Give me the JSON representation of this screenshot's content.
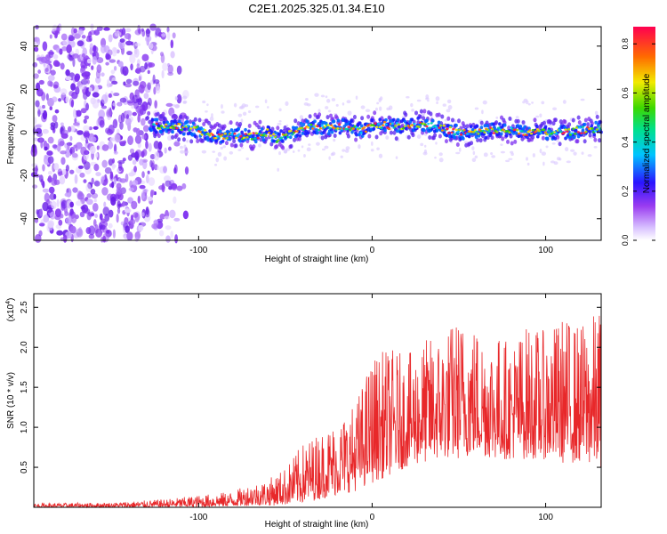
{
  "chart_data": [
    {
      "type": "heatmap",
      "title": "C2E1.2025.325.01.34.E10",
      "xlabel": "Height of straight line (km)",
      "ylabel": "Frequency (Hz)",
      "xlim": [
        -195,
        132
      ],
      "ylim": [
        -50,
        49
      ],
      "xticks": [
        -100,
        0,
        100
      ],
      "yticks": [
        -40,
        -20,
        0,
        20,
        40
      ],
      "noise_region_x": [
        -195,
        -110
      ],
      "signal_band": {
        "x": [
          -130,
          -115,
          -100,
          -90,
          -80,
          -70,
          -60,
          -55,
          -45,
          -35,
          -25,
          -15,
          -5,
          0,
          10,
          20,
          30,
          40,
          50,
          60,
          70,
          80,
          90,
          100,
          110,
          120,
          132
        ],
        "center_hz": [
          3,
          3,
          1,
          -2,
          -1,
          -2,
          0,
          -3,
          0,
          3,
          2,
          3,
          1,
          4,
          3,
          3,
          4,
          2,
          0,
          0,
          1,
          1,
          0,
          0,
          0,
          1,
          2
        ],
        "halfwidth_hz": 5
      },
      "colorbar": {
        "label": "Normalized spectral amplitude",
        "ticks": [
          "0.0",
          "0.2",
          "0.4",
          "0.6",
          "0.8"
        ],
        "range": [
          0,
          0.87
        ]
      }
    },
    {
      "type": "line",
      "xlabel": "Height of straight line (km)",
      "ylabel": "SNR (10 * v/v)",
      "multiplier": "(x10",
      "multiplier_exp": "4",
      "xlim": [
        -195,
        132
      ],
      "ylim": [
        0,
        2.67
      ],
      "xticks": [
        -100,
        0,
        100
      ],
      "yticks": [
        "0.5",
        "1.0",
        "1.5",
        "2.0",
        "2.5"
      ],
      "series": [
        {
          "name": "SNR",
          "color": "#e8282a",
          "envelope_x": [
            -195,
            -150,
            -120,
            -100,
            -80,
            -70,
            -60,
            -50,
            -40,
            -30,
            -20,
            -10,
            0,
            10,
            20,
            30,
            40,
            50,
            60,
            70,
            80,
            90,
            100,
            110,
            120,
            132
          ],
          "envelope_min": [
            0.0,
            0.0,
            0.0,
            0.0,
            0.01,
            0.02,
            0.02,
            0.03,
            0.05,
            0.1,
            0.15,
            0.2,
            0.3,
            0.4,
            0.5,
            0.55,
            0.6,
            0.6,
            0.65,
            0.6,
            0.6,
            0.6,
            0.6,
            0.55,
            0.55,
            0.5
          ],
          "envelope_max": [
            0.05,
            0.06,
            0.1,
            0.15,
            0.2,
            0.3,
            0.35,
            0.5,
            0.8,
            0.95,
            1.1,
            1.3,
            1.9,
            2.0,
            1.9,
            2.1,
            2.2,
            2.4,
            2.3,
            2.2,
            2.1,
            2.3,
            2.2,
            2.4,
            2.3,
            2.5
          ]
        }
      ]
    }
  ]
}
